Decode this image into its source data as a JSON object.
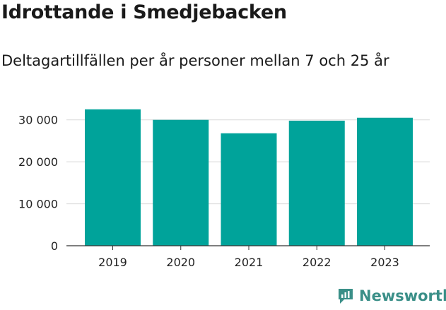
{
  "header": {
    "title": "Idrottande i Smedjebacken",
    "subtitle": "Deltagartillfällen per år personer mellan 7 och 25 år"
  },
  "brand": {
    "name": "Newsworthy",
    "icon": "newsworthy-logo-icon",
    "color": "#3a8f88"
  },
  "chart_data": {
    "type": "bar",
    "categories": [
      "2019",
      "2020",
      "2021",
      "2022",
      "2023"
    ],
    "values": [
      32500,
      30000,
      26800,
      29800,
      30500
    ],
    "ylim": [
      0,
      35000
    ],
    "yticks": [
      0,
      10000,
      20000,
      30000
    ],
    "ytick_labels": [
      "0",
      "10 000",
      "20 000",
      "30 000"
    ],
    "grid": true,
    "bar_color": "#00a39a"
  }
}
